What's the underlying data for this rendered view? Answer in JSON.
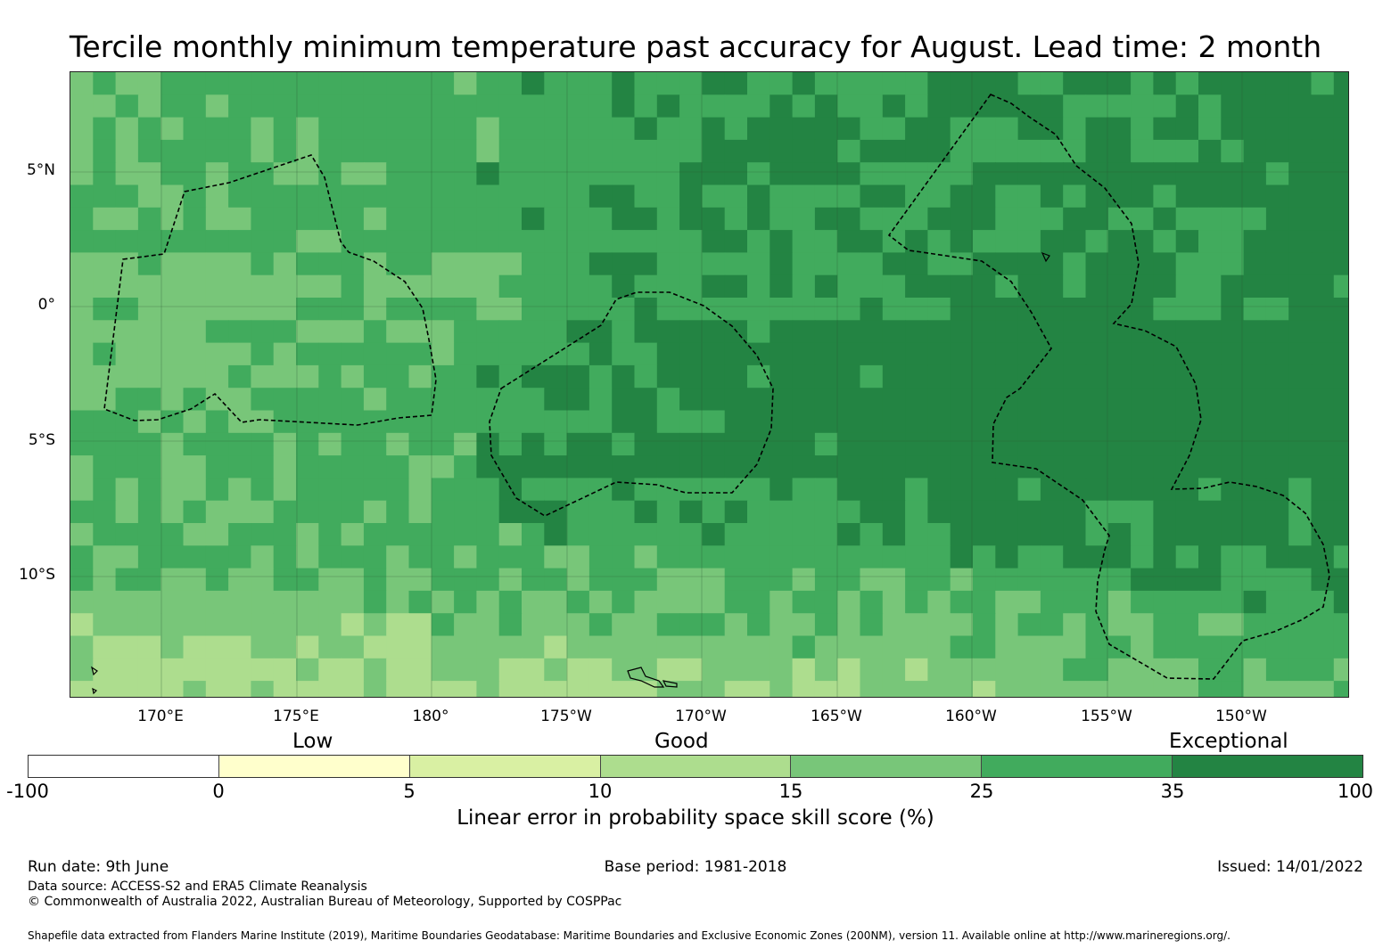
{
  "title": "Tercile monthly minimum temperature past accuracy for August. Lead time: 2 month",
  "map": {
    "lat_labels": [
      "5°N",
      "0°",
      "5°S",
      "10°S"
    ],
    "lon_labels": [
      "170°E",
      "175°E",
      "180°",
      "175°W",
      "170°W",
      "165°W",
      "160°W",
      "155°W",
      "150°W"
    ]
  },
  "legend": {
    "categories": [
      "Low",
      "Good",
      "Exceptional"
    ],
    "ticks": [
      "-100",
      "0",
      "5",
      "10",
      "15",
      "25",
      "35",
      "100"
    ],
    "colors": [
      "#ffffff",
      "#ffffcc",
      "#d9f0a3",
      "#addd8e",
      "#78c679",
      "#41ab5d",
      "#238443"
    ],
    "label": "Linear error in probability space skill score (%)"
  },
  "footer": {
    "run_date": "Run date: 9th June",
    "base_period": "Base period: 1981-2018",
    "issued": "Issued: 14/01/2022",
    "data_source": "Data source: ACCESS-S2 and ERA5 Climate Reanalysis",
    "copyright": "© Commonwealth of Australia 2022, Australian Bureau of Meteorology, Supported by COSPPac",
    "shapefile": "Shapefile data extracted from Flanders Marine Institute (2019), Maritime Boundaries Geodatabase: Maritime Boundaries and Exclusive Economic Zones (200NM), version 11. Available online at http://www.marineregions.org/."
  }
}
